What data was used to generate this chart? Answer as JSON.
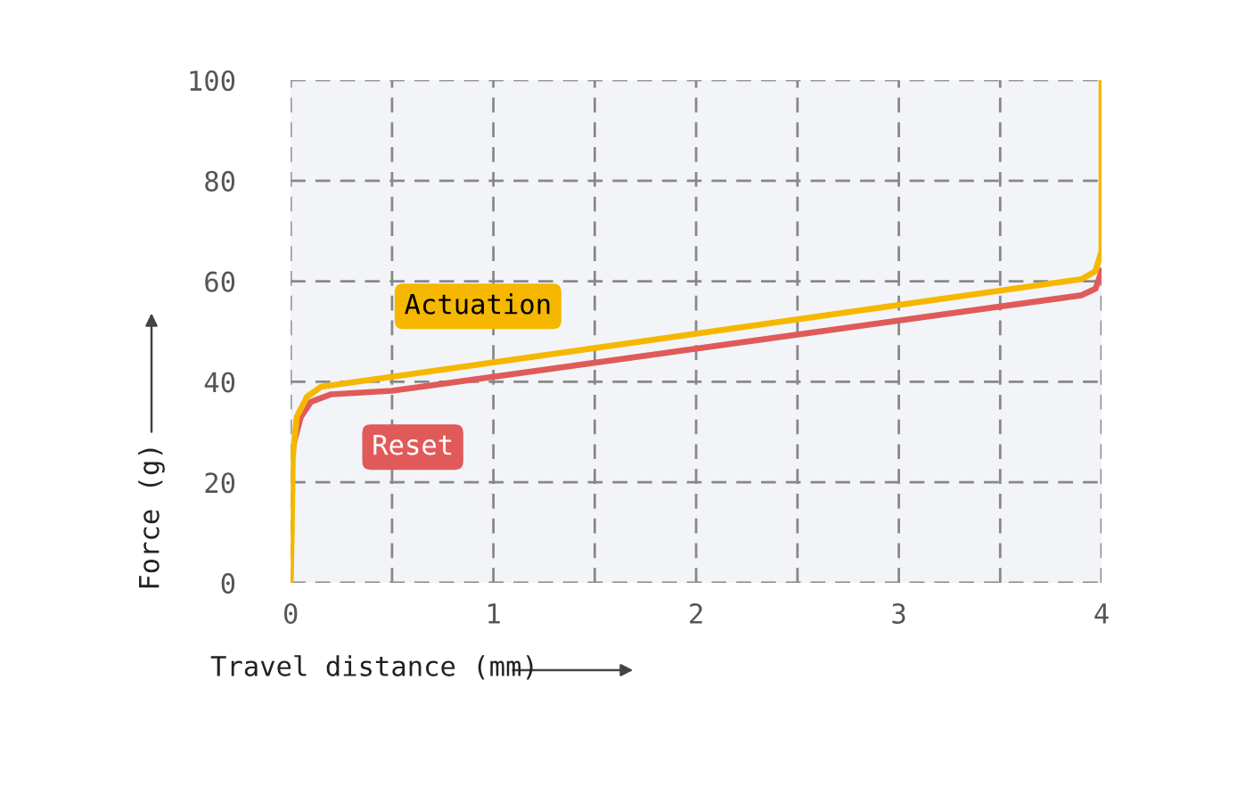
{
  "chart_data": {
    "type": "line",
    "xlabel": "Travel distance (mm)",
    "ylabel": "Force (g)",
    "xlim": [
      0,
      4
    ],
    "ylim": [
      0,
      100
    ],
    "xticks": [
      0,
      {
        "value": 0.5,
        "label": null
      },
      1,
      {
        "value": 1.5,
        "label": null
      },
      2,
      {
        "value": 2.5,
        "label": null
      },
      3,
      {
        "value": 3.5,
        "label": null
      },
      4
    ],
    "yticks": [
      0,
      20,
      40,
      60,
      80,
      100
    ],
    "grid": true,
    "legend": false,
    "marker": "none",
    "line_style": "solid",
    "series": [
      {
        "name": "Actuation",
        "color": "#f5b700",
        "x": [
          0,
          0.005,
          0.01,
          0.03,
          0.08,
          0.15,
          0.5,
          3.9,
          3.97,
          4,
          4
        ],
        "values": [
          0,
          10,
          25,
          33,
          37,
          39,
          41,
          60.4,
          62,
          66,
          100
        ]
      },
      {
        "name": "Reset",
        "color": "#e05a5a",
        "x": [
          0.02,
          0.05,
          0.1,
          0.2,
          0.5,
          3.9,
          3.97,
          4
        ],
        "values": [
          28.5,
          33,
          36,
          37.5,
          38.2,
          57.2,
          58.5,
          62
        ]
      }
    ]
  }
}
